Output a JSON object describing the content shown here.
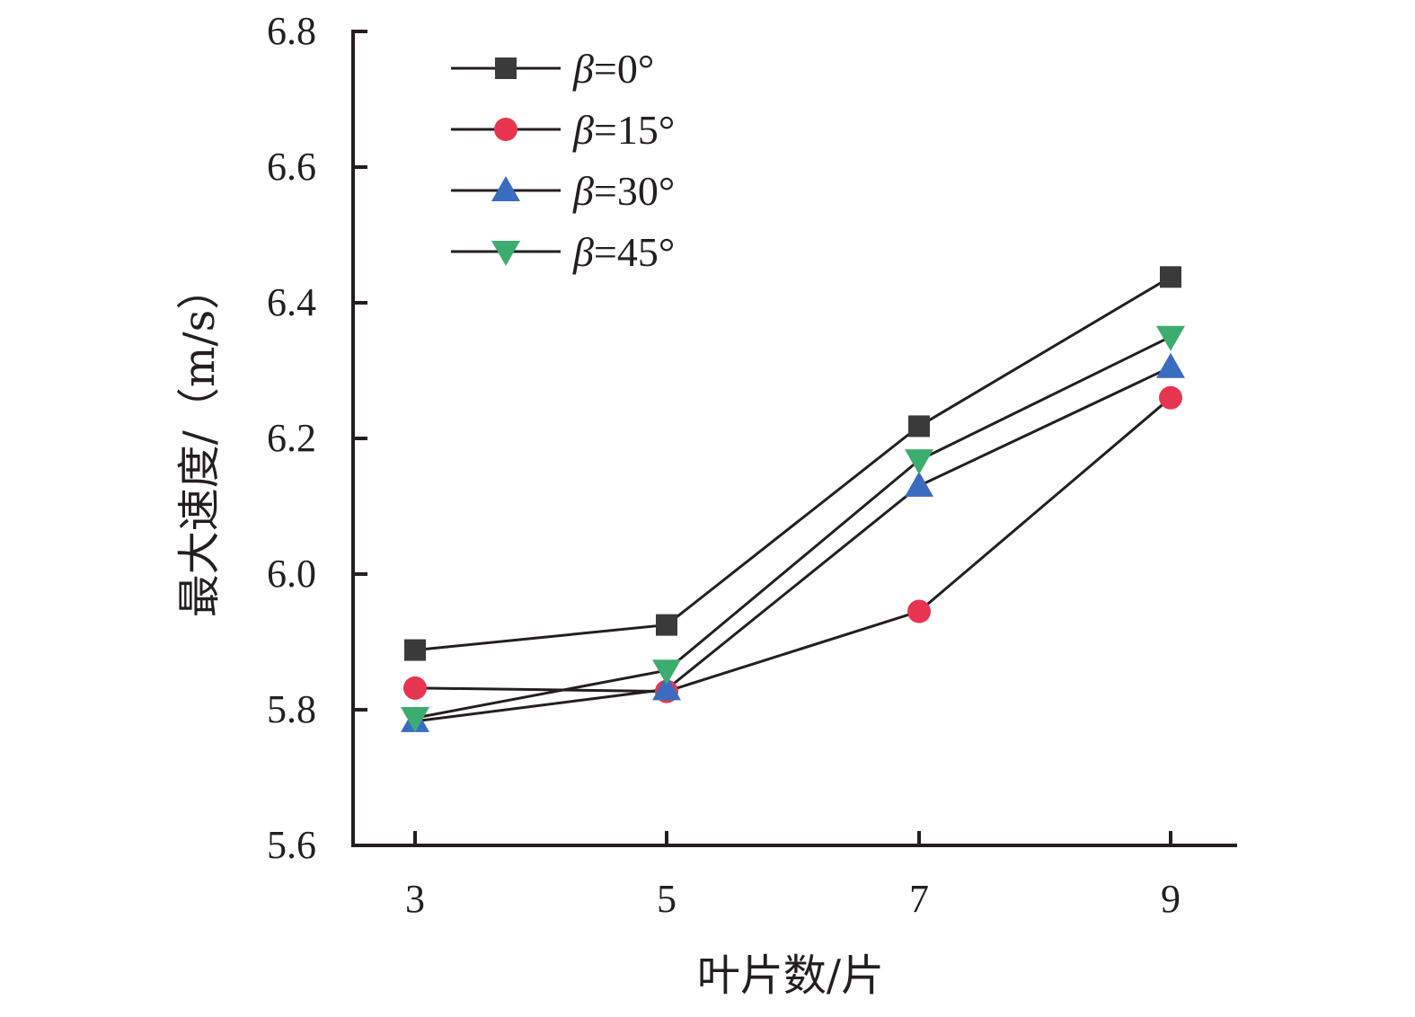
{
  "chart_data": {
    "type": "line",
    "title": "",
    "xlabel": "叶片数/片",
    "ylabel": "最大速度/（m/s）",
    "x": [
      3,
      5,
      7,
      9
    ],
    "x_tick_labels": [
      "3",
      "5",
      "7",
      "9"
    ],
    "ylim": [
      5.6,
      6.8
    ],
    "y_ticks": [
      5.6,
      5.8,
      6.0,
      6.2,
      6.4,
      6.6,
      6.8
    ],
    "y_tick_labels": [
      "5.6",
      "5.8",
      "6.0",
      "6.2",
      "6.4",
      "6.6",
      "6.8"
    ],
    "grid": false,
    "legend_position": "top-left",
    "series": [
      {
        "name": "β=0°",
        "legend_symbol": "β",
        "legend_value": "=0°",
        "marker": "square",
        "color": "#3b3a3b",
        "values": [
          5.888,
          5.925,
          6.218,
          6.438
        ]
      },
      {
        "name": "β=15°",
        "legend_symbol": "β",
        "legend_value": "=15°",
        "marker": "circle",
        "color": "#e8354f",
        "values": [
          5.832,
          5.827,
          5.945,
          6.26
        ]
      },
      {
        "name": "β=30°",
        "legend_symbol": "β",
        "legend_value": "=30°",
        "marker": "triangle-up",
        "color": "#3a6cc0",
        "values": [
          5.783,
          5.83,
          6.13,
          6.305
        ]
      },
      {
        "name": "β=45°",
        "legend_symbol": "β",
        "legend_value": "=45°",
        "marker": "triangle-down",
        "color": "#3cad6f",
        "values": [
          5.788,
          5.858,
          6.168,
          6.35
        ]
      }
    ]
  }
}
